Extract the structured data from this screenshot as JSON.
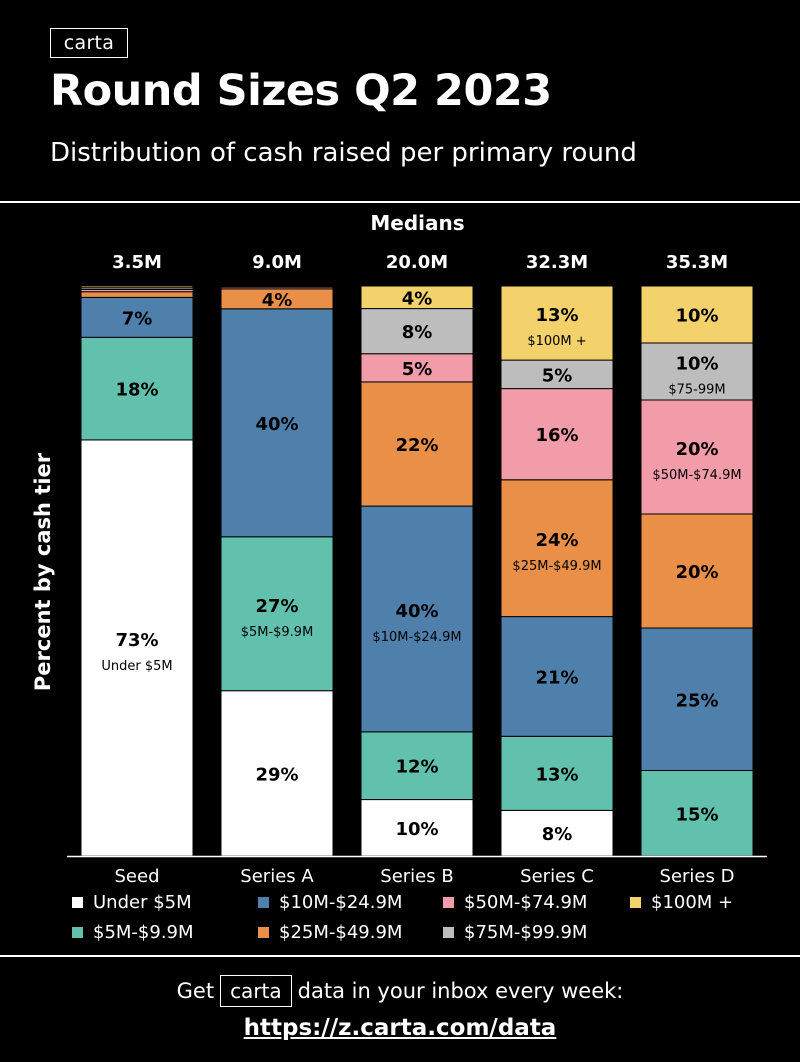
{
  "header": {
    "logo": "carta",
    "title": "Round Sizes Q2 2023",
    "subtitle": "Distribution of cash raised per primary round"
  },
  "chart_data": {
    "type": "bar",
    "stacked": true,
    "ylabel": "Percent by cash tier",
    "medians_label": "Medians",
    "categories": [
      "Seed",
      "Series A",
      "Series B",
      "Series C",
      "Series D"
    ],
    "medians": [
      "3.5M",
      "9.0M",
      "20.0M",
      "32.3M",
      "35.3M"
    ],
    "tiers": [
      {
        "name": "Under $5M",
        "color": "#ffffff"
      },
      {
        "name": "$5M-$9.9M",
        "color": "#62c1ad"
      },
      {
        "name": "$10M-$24.9M",
        "color": "#4e80ab"
      },
      {
        "name": "$25M-$49.9M",
        "color": "#ea8f47"
      },
      {
        "name": "$50M-$74.9M",
        "color": "#f29ba9"
      },
      {
        "name": "$75M-$99.9M",
        "color": "#bdbdbd"
      },
      {
        "name": "$100M +",
        "color": "#f3d16b"
      }
    ],
    "values": [
      [
        73,
        18,
        7,
        1,
        0.4,
        0.3,
        0.3
      ],
      [
        29,
        27,
        40,
        3.5,
        0.3,
        0.1,
        0.1
      ],
      [
        10,
        12,
        40,
        22,
        5,
        8,
        4
      ],
      [
        8,
        13,
        21,
        24,
        16,
        5,
        13
      ],
      [
        0,
        15,
        25,
        20,
        20,
        10,
        10
      ]
    ],
    "labels": [
      [
        "73%",
        "18%",
        "7%",
        "",
        "",
        "",
        ""
      ],
      [
        "29%",
        "27%",
        "40%",
        "4%",
        "",
        "",
        ""
      ],
      [
        "10%",
        "12%",
        "40%",
        "22%",
        "5%",
        "8%",
        "4%"
      ],
      [
        "8%",
        "13%",
        "21%",
        "24%",
        "16%",
        "5%",
        "13%"
      ],
      [
        "",
        "15%",
        "25%",
        "20%",
        "20%",
        "10%",
        "10%"
      ]
    ],
    "sublabels": [
      [
        "Under $5M",
        "",
        "",
        "",
        "",
        "",
        ""
      ],
      [
        "",
        "$5M-$9.9M",
        "",
        "",
        "",
        "",
        ""
      ],
      [
        "",
        "",
        "$10M-$24.9M",
        "",
        "",
        "",
        ""
      ],
      [
        "",
        "",
        "",
        "$25M-$49.9M",
        "",
        "",
        "$100M +"
      ],
      [
        "",
        "",
        "",
        "",
        "$50M-$74.9M",
        "$75-99M",
        ""
      ]
    ],
    "ylim": [
      0,
      100
    ],
    "grid": false,
    "legend_position": "bottom"
  },
  "legend": {
    "row1": [
      "Under $5M",
      "$10M-$24.9M",
      "$50M-$74.9M",
      "$100M +"
    ],
    "row2": [
      "$5M-$9.9M",
      "$25M-$49.9M",
      "$75M-$99.9M"
    ]
  },
  "footer": {
    "get": "Get",
    "logo": "carta",
    "tail": "data in your inbox every week:",
    "url": "https://z.carta.com/data"
  }
}
